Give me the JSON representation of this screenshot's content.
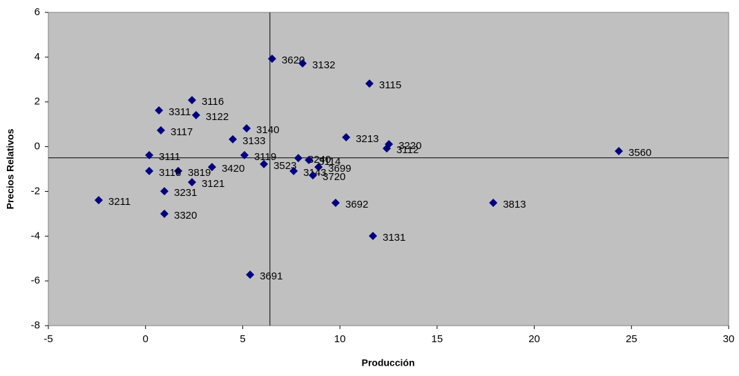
{
  "chart_data": {
    "type": "scatter",
    "xlabel": "Producción",
    "ylabel": "Precios Relativos",
    "xlim": [
      -5,
      30
    ],
    "ylim": [
      -8,
      6
    ],
    "xticks": [
      -5,
      0,
      5,
      10,
      15,
      20,
      25,
      30
    ],
    "yticks": [
      -8,
      -6,
      -4,
      -2,
      0,
      2,
      4,
      6
    ],
    "color": "#000080",
    "plot_background": "#c0c0c0",
    "reference_lines": {
      "x": 6.4,
      "y": -0.5
    },
    "point_labels": [
      "3620",
      "3132",
      "3115",
      "3116",
      "3311",
      "3122",
      "3117",
      "3140",
      "3133",
      "3213",
      "3220",
      "3112",
      "3560",
      "3111",
      "3119",
      "3240",
      "3114",
      "3523",
      "3420",
      "3699",
      "3819",
      "3118",
      "3143",
      "3720",
      "3121",
      "3231",
      "3211",
      "3692",
      "3813",
      "3320",
      "3131",
      "3691"
    ],
    "x": [
      6.51,
      8.08,
      11.52,
      2.39,
      0.69,
      2.6,
      0.79,
      5.2,
      4.49,
      10.32,
      12.52,
      12.41,
      24.35,
      0.19,
      5.09,
      7.86,
      8.4,
      6.09,
      3.42,
      8.9,
      1.68,
      0.19,
      7.62,
      8.61,
      2.39,
      0.97,
      -2.41,
      9.78,
      17.89,
      0.97,
      11.7,
      5.38
    ],
    "values": [
      3.93,
      3.72,
      2.82,
      2.08,
      1.62,
      1.41,
      0.73,
      0.82,
      0.33,
      0.42,
      0.11,
      -0.08,
      -0.2,
      -0.38,
      -0.38,
      -0.51,
      -0.6,
      -0.78,
      -0.91,
      -0.91,
      -1.09,
      -1.09,
      -1.09,
      -1.28,
      -1.59,
      -1.99,
      -2.39,
      -2.51,
      -2.51,
      -3.0,
      -3.99,
      -5.72
    ]
  }
}
